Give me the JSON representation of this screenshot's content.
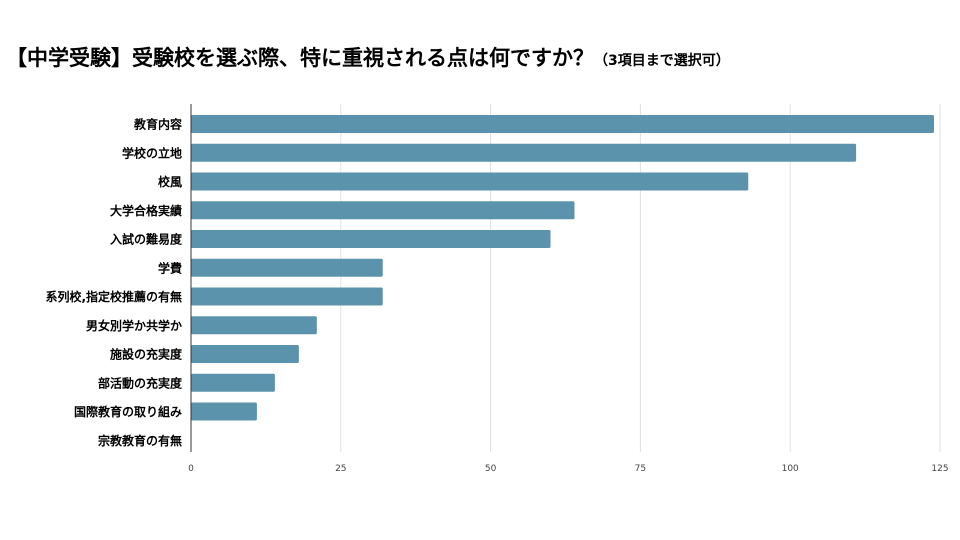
{
  "title": {
    "main": "【中学受験】受験校を選ぶ際、特に重視される点は何ですか？",
    "sub": "（3項目まで選択可）"
  },
  "chart_data": {
    "type": "bar",
    "orientation": "horizontal",
    "categories": [
      "教育内容",
      "学校の立地",
      "校風",
      "大学合格実績",
      "入試の難易度",
      "学費",
      "系列校,指定校推薦の有無",
      "男女別学か共学か",
      "施設の充実度",
      "部活動の充実度",
      "国際教育の取り組み",
      "宗教教育の有無"
    ],
    "values": [
      124,
      111,
      93,
      64,
      60,
      32,
      32,
      21,
      18,
      14,
      11,
      0
    ],
    "xlim": [
      0,
      125
    ],
    "xticks": [
      0,
      25,
      50,
      75,
      100,
      125
    ],
    "grid": true,
    "legend": "none",
    "colors": {
      "bar": "#5b93ad",
      "grid": "#e0e0e0",
      "axis": "#333333"
    }
  }
}
